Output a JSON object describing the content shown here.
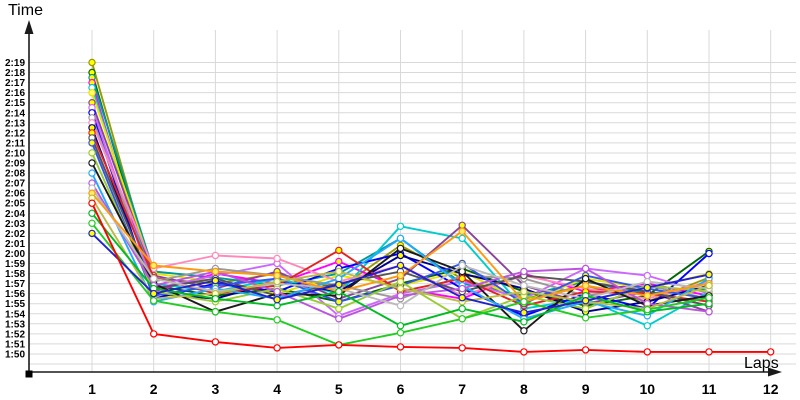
{
  "chart_data": {
    "type": "line",
    "title": "",
    "xlabel": "Laps",
    "ylabel": "Time",
    "x": [
      1,
      2,
      3,
      4,
      5,
      6,
      7,
      8,
      9,
      10,
      11,
      12
    ],
    "x_ticks": [
      "1",
      "2",
      "3",
      "4",
      "5",
      "6",
      "7",
      "8",
      "9",
      "10",
      "11",
      "12"
    ],
    "y_ticks": [
      "2:19",
      "2:18",
      "2:17",
      "2:16",
      "2:15",
      "2:14",
      "2:13",
      "2:12",
      "2:11",
      "2:10",
      "2:09",
      "2:08",
      "2:07",
      "2:06",
      "2:05",
      "2:04",
      "2:03",
      "2:02",
      "2:01",
      "2:00",
      "1:59",
      "1:58",
      "1:57",
      "1:56",
      "1:55",
      "1:54",
      "1:53",
      "1:52",
      "1:51",
      "1:50"
    ],
    "y_axis": {
      "top": "2:19",
      "bottom": "1:50",
      "tick_step": "1 second",
      "grid": true
    },
    "value_unit": "lap time in total seconds (1:50 = 110, 2:19 = 139)",
    "series": [
      {
        "id": "s1",
        "color": "#999900",
        "marker_fill": "#ffff00",
        "values": [
          139,
          117.5,
          117,
          118,
          116.5,
          120.8,
          117.5,
          115.5,
          116.8,
          115.2,
          117.6
        ]
      },
      {
        "id": "s2",
        "color": "#006600",
        "marker_fill": "#ffff00",
        "values": [
          138,
          116.8,
          115.8,
          116.5,
          115.2,
          117,
          118.5,
          116.2,
          114.8,
          115.8,
          120.2
        ]
      },
      {
        "id": "s3",
        "color": "#009999",
        "marker_fill": "#ffff00",
        "values": [
          137.5,
          118.2,
          117.6,
          116.8,
          118,
          121.5,
          117,
          115.8,
          117.2,
          116,
          116.5
        ]
      },
      {
        "id": "s4",
        "color": "#ff00ff",
        "marker_fill": "#ffff00",
        "values": [
          137,
          116.2,
          118,
          117,
          119.2,
          116.5,
          115.5,
          118,
          116.2,
          117,
          115.8
        ]
      },
      {
        "id": "s5",
        "color": "#00cccc",
        "marker_fill": "#ffffff",
        "values": [
          136.5,
          117,
          116.2,
          117.5,
          116,
          122.7,
          121.5,
          114.5,
          115.5,
          112.8,
          116.2
        ]
      },
      {
        "id": "s6",
        "color": "#e6e600",
        "marker_fill": "#ffff66",
        "values": [
          136,
          118,
          117.2,
          116,
          117.8,
          116.8,
          118.2,
          115.2,
          117.5,
          116.5,
          118
        ]
      },
      {
        "id": "s7",
        "color": "#884499",
        "marker_fill": "#ffff00",
        "values": [
          135,
          117.8,
          116.5,
          118.2,
          115.5,
          117.5,
          122.8,
          116.8,
          115,
          116.2,
          114.2
        ]
      },
      {
        "id": "s8",
        "color": "#cc66ff",
        "marker_fill": "#ffffff",
        "values": [
          134.5,
          116.5,
          117.8,
          119,
          113.8,
          116,
          117.2,
          115.5,
          118.5,
          117.8,
          116
        ]
      },
      {
        "id": "s9",
        "color": "#0000ff",
        "marker_fill": "#ffffff",
        "values": [
          134,
          115.5,
          117,
          116.2,
          118.5,
          120,
          116.5,
          113.8,
          116,
          114.5,
          120
        ]
      },
      {
        "id": "s10",
        "color": "#999999",
        "marker_fill": "#ffffff",
        "values": [
          133.5,
          117.2,
          118.5,
          117.8,
          116.8,
          115.5,
          117.8,
          117.5,
          115.8,
          116.8,
          115.5
        ]
      },
      {
        "id": "s11",
        "color": "#ff88bb",
        "marker_fill": "#ffffff",
        "values": [
          133,
          118.5,
          119.8,
          119.5,
          117.2,
          118.8,
          115.8,
          117.8,
          116.5,
          115.5,
          117.2
        ]
      },
      {
        "id": "s12",
        "color": "#000088",
        "marker_fill": "#ffff00",
        "values": [
          132.5,
          116,
          115.5,
          117.2,
          116.2,
          119.8,
          118,
          116.5,
          114.2,
          115.2,
          116.8
        ]
      },
      {
        "id": "s13",
        "color": "#e32222",
        "marker_fill": "#ffff00",
        "values": [
          132,
          117.6,
          116,
          116.8,
          120.3,
          116.2,
          117.5,
          114.8,
          116.2,
          116,
          115.2
        ]
      },
      {
        "id": "s14",
        "color": "#555555",
        "marker_fill": "#ffffff",
        "values": [
          131.5,
          116.5,
          117.5,
          115.8,
          117,
          118.2,
          116.2,
          117.8,
          117.2,
          116.2,
          114.8
        ]
      },
      {
        "id": "s15",
        "color": "#3355ee",
        "marker_fill": "#ffff00",
        "values": [
          131,
          115.8,
          116.8,
          117.5,
          115.2,
          116.8,
          119,
          115,
          117.8,
          116.5,
          115.5
        ]
      },
      {
        "id": "s16",
        "color": "#99cc33",
        "marker_fill": "#ffffcc",
        "values": [
          130,
          116.2,
          115.2,
          116.5,
          114.5,
          117.2,
          113.5,
          115.8,
          114.5,
          116.8,
          116.2
        ]
      },
      {
        "id": "s17",
        "color": "#1a1a1a",
        "marker_fill": "#ffffff",
        "values": [
          129,
          117,
          114.2,
          116,
          115.8,
          120.5,
          118.2,
          112.3,
          117.5,
          114.8,
          115.8
        ]
      },
      {
        "id": "s18",
        "color": "#22aaff",
        "marker_fill": "#ffffff",
        "values": [
          128,
          115.2,
          116.5,
          115.5,
          117.5,
          121.5,
          116.8,
          113.5,
          115.2,
          113.8,
          117.5
        ]
      },
      {
        "id": "s19",
        "color": "#bb55dd",
        "marker_fill": "#ffffff",
        "values": [
          127,
          116.8,
          118.2,
          116.2,
          113.5,
          115.8,
          116.5,
          118.2,
          118.5,
          115,
          114.2
        ]
      },
      {
        "id": "s20",
        "color": "#bbbbbb",
        "marker_fill": "#ffffff",
        "values": [
          126.5,
          117.5,
          116.2,
          117,
          116.5,
          114.8,
          118.8,
          116.8,
          115.5,
          117.2,
          116.5
        ]
      },
      {
        "id": "s21",
        "color": "#ff9911",
        "marker_fill": "#ffee66",
        "values": [
          126,
          118.8,
          118.2,
          117.8,
          116.2,
          117.8,
          122.2,
          115.2,
          116.8,
          115.8,
          117
        ]
      },
      {
        "id": "s22",
        "color": "#bbbb44",
        "marker_fill": "#ffffcc",
        "values": [
          125.5,
          115.5,
          116,
          117.2,
          118.2,
          116.5,
          115.2,
          116.2,
          115.2,
          114.5,
          116.8
        ]
      },
      {
        "id": "s23",
        "color": "#00bb22",
        "marker_fill": "#ffffff",
        "values": [
          124,
          116.5,
          115.5,
          114.8,
          116.2,
          112.8,
          114.5,
          113.2,
          115.8,
          114.2,
          115
        ]
      },
      {
        "id": "s24",
        "color": "#22cc22",
        "marker_fill": "#ffffff",
        "values": [
          123,
          115.3,
          114.2,
          113.4,
          110.9,
          112.1,
          113.5,
          115.2,
          113.6,
          114.4,
          115.6
        ]
      },
      {
        "id": "s25",
        "color": "#2222cc",
        "marker_fill": "#ffff00",
        "values": [
          122,
          116,
          117.3,
          115.4,
          116.9,
          118.8,
          115.6,
          114.1,
          115.3,
          116.6,
          117.9
        ]
      },
      {
        "id": "s26",
        "color": "#ff0000",
        "marker_fill": "#ffffff",
        "values": [
          125,
          112,
          111.2,
          110.6,
          110.9,
          110.7,
          110.6,
          110.2,
          110.4,
          110.2,
          110.2,
          110.2
        ]
      }
    ],
    "colors": {
      "grid": "#d9d9d9",
      "axis": "#1a1a1a",
      "background": "#ffffff",
      "text": "#000000"
    }
  }
}
